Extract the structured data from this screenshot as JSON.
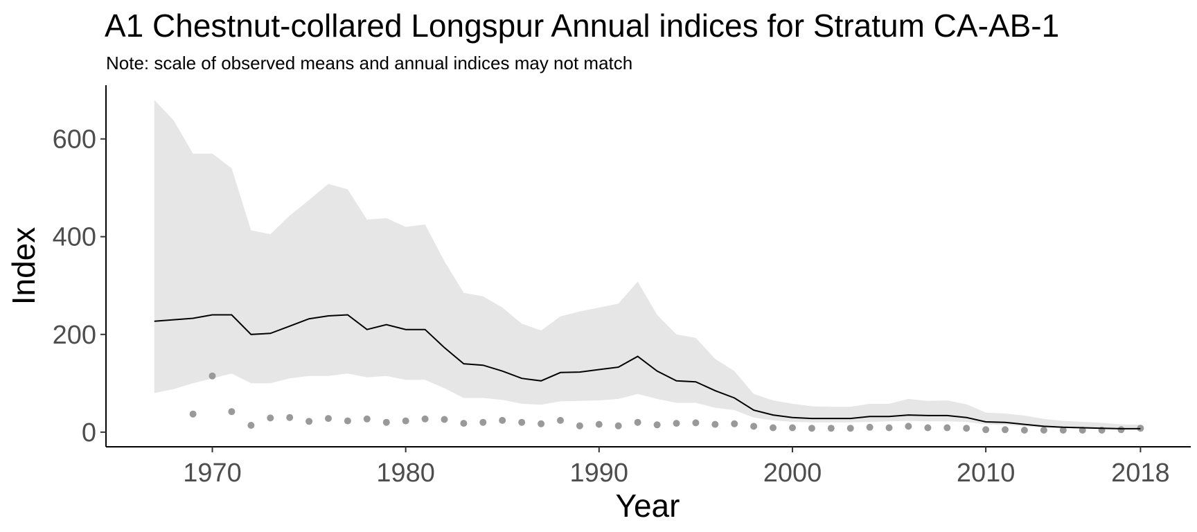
{
  "chart_data": {
    "type": "line",
    "title": "A1 Chestnut-collared Longspur Annual indices for Stratum CA-AB-1",
    "subtitle": "Note: scale of observed means and annual indices may not match",
    "xlabel": "Year",
    "ylabel": "Index",
    "xlim": [
      1964.5,
      2020.6
    ],
    "ylim": [
      -30,
      710
    ],
    "x_ticks": [
      1970,
      1980,
      1990,
      2000,
      2010,
      2018
    ],
    "y_ticks": [
      0,
      200,
      400,
      600
    ],
    "grid": false,
    "legend": "none",
    "colors": {
      "ribbon": "#e6e6e6",
      "index_line": "#000000",
      "observed_points": "#999999"
    },
    "series": [
      {
        "role": "index",
        "x": [
          1967,
          1968,
          1969,
          1970,
          1971,
          1972,
          1973,
          1974,
          1975,
          1976,
          1977,
          1978,
          1979,
          1980,
          1981,
          1982,
          1983,
          1984,
          1985,
          1986,
          1987,
          1988,
          1989,
          1990,
          1991,
          1992,
          1993,
          1994,
          1995,
          1996,
          1997,
          1998,
          1999,
          2000,
          2001,
          2002,
          2003,
          2004,
          2005,
          2006,
          2007,
          2008,
          2009,
          2010,
          2011,
          2012,
          2013,
          2014,
          2015,
          2016,
          2017,
          2018
        ],
        "y": [
          227,
          230,
          233,
          240,
          240,
          200,
          202,
          217,
          232,
          238,
          240,
          210,
          220,
          210,
          210,
          173,
          140,
          137,
          125,
          110,
          105,
          122,
          123,
          128,
          133,
          155,
          125,
          105,
          103,
          85,
          70,
          45,
          35,
          30,
          28,
          28,
          28,
          32,
          32,
          35,
          34,
          34,
          30,
          21,
          20,
          16,
          12,
          10,
          9,
          8,
          7,
          7
        ],
        "lower": [
          80,
          88,
          100,
          110,
          120,
          100,
          100,
          110,
          115,
          115,
          120,
          112,
          115,
          107,
          107,
          90,
          70,
          70,
          66,
          58,
          56,
          63,
          64,
          65,
          68,
          78,
          68,
          60,
          60,
          50,
          45,
          30,
          24,
          21,
          20,
          20,
          20,
          21,
          22,
          23,
          22,
          22,
          21,
          16,
          15,
          12,
          9,
          8,
          7,
          6,
          5,
          5
        ],
        "upper": [
          680,
          638,
          570,
          570,
          540,
          413,
          405,
          443,
          475,
          508,
          497,
          435,
          438,
          420,
          425,
          350,
          285,
          278,
          255,
          222,
          208,
          237,
          247,
          255,
          263,
          308,
          240,
          200,
          193,
          150,
          125,
          78,
          65,
          58,
          53,
          52,
          52,
          58,
          58,
          68,
          64,
          65,
          57,
          40,
          38,
          34,
          27,
          23,
          21,
          19,
          16,
          15
        ]
      },
      {
        "role": "observed",
        "x": [
          1969,
          1970,
          1971,
          1972,
          1973,
          1974,
          1975,
          1976,
          1977,
          1978,
          1979,
          1980,
          1981,
          1982,
          1983,
          1984,
          1985,
          1986,
          1987,
          1988,
          1989,
          1990,
          1991,
          1992,
          1993,
          1994,
          1995,
          1996,
          1997,
          1998,
          1999,
          2000,
          2001,
          2002,
          2003,
          2004,
          2005,
          2006,
          2007,
          2008,
          2009,
          2010,
          2011,
          2012,
          2013,
          2014,
          2015,
          2016,
          2017,
          2018
        ],
        "y": [
          37,
          115,
          42,
          14,
          29,
          30,
          22,
          28,
          23,
          27,
          20,
          23,
          27,
          26,
          18,
          20,
          24,
          20,
          17,
          24,
          13,
          16,
          13,
          20,
          15,
          18,
          19,
          16,
          17,
          12,
          9,
          9,
          8,
          8,
          8,
          10,
          9,
          12,
          9,
          9,
          8,
          5,
          5,
          4,
          4,
          4,
          4,
          4,
          5,
          8
        ]
      }
    ]
  }
}
